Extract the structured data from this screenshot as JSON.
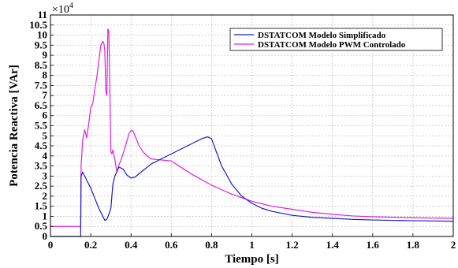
{
  "chart_data": {
    "type": "line",
    "title": "",
    "xlabel": "Tiempo [s]",
    "ylabel": "Potencia Reactiva  [VAr]",
    "y_multiplier": "×10",
    "y_exponent": "4",
    "xlim": [
      0,
      2
    ],
    "ylim": [
      0,
      11
    ],
    "x_ticks": [
      "0",
      "0.2",
      "0.4",
      "0.6",
      "0.8",
      "1",
      "1.2",
      "1.4",
      "1.6",
      "1.8",
      "2"
    ],
    "y_ticks": [
      "0",
      "0.5",
      "1",
      "1.5",
      "2",
      "2.5",
      "3",
      "3.5",
      "4",
      "4.5",
      "5",
      "5.5",
      "6",
      "6.5",
      "7",
      "7.5",
      "8",
      "8.5",
      "9",
      "9.5",
      "10",
      "10.5",
      "11"
    ],
    "grid": true,
    "legend_position": "top-right",
    "series": [
      {
        "name": "DSTATCOM Modelo Simplificado",
        "color": "#1a1acc",
        "x": [
          0,
          0.15,
          0.152,
          0.16,
          0.18,
          0.2,
          0.22,
          0.24,
          0.26,
          0.27,
          0.28,
          0.29,
          0.3,
          0.31,
          0.32,
          0.34,
          0.36,
          0.38,
          0.4,
          0.42,
          0.45,
          0.5,
          0.55,
          0.6,
          0.65,
          0.7,
          0.75,
          0.78,
          0.8,
          0.82,
          0.85,
          0.9,
          0.95,
          1.0,
          1.05,
          1.1,
          1.2,
          1.3,
          1.4,
          1.5,
          1.6,
          1.7,
          1.8,
          1.9,
          2.0
        ],
        "y": [
          0,
          0,
          3.0,
          3.2,
          2.8,
          2.4,
          1.9,
          1.4,
          1.0,
          0.8,
          0.85,
          1.1,
          1.4,
          2.6,
          3.0,
          3.45,
          3.35,
          3.05,
          2.9,
          2.95,
          3.2,
          3.6,
          3.85,
          4.1,
          4.35,
          4.6,
          4.85,
          4.95,
          4.85,
          4.3,
          3.5,
          2.6,
          2.0,
          1.65,
          1.4,
          1.25,
          1.05,
          0.95,
          0.9,
          0.85,
          0.82,
          0.8,
          0.78,
          0.77,
          0.76
        ]
      },
      {
        "name": "DSTATCOM Modelo PWM Controlado",
        "color": "#e020e0",
        "x": [
          0,
          0.15,
          0.152,
          0.16,
          0.17,
          0.18,
          0.19,
          0.2,
          0.21,
          0.22,
          0.23,
          0.24,
          0.25,
          0.26,
          0.265,
          0.27,
          0.275,
          0.28,
          0.285,
          0.29,
          0.3,
          0.305,
          0.31,
          0.32,
          0.33,
          0.34,
          0.35,
          0.37,
          0.39,
          0.4,
          0.41,
          0.42,
          0.44,
          0.46,
          0.48,
          0.5,
          0.55,
          0.6,
          0.7,
          0.8,
          0.9,
          1.0,
          1.1,
          1.2,
          1.3,
          1.4,
          1.5,
          1.6,
          1.8,
          2.0
        ],
        "y": [
          0.5,
          0.5,
          3.5,
          4.8,
          5.3,
          4.9,
          5.6,
          6.4,
          6.6,
          7.3,
          7.9,
          8.7,
          9.5,
          9.7,
          9.6,
          9.2,
          7.2,
          7.0,
          10.3,
          10.2,
          4.2,
          4.1,
          4.3,
          3.8,
          3.2,
          3.55,
          3.8,
          4.4,
          5.1,
          5.25,
          5.25,
          5.0,
          4.5,
          4.2,
          4.0,
          3.85,
          3.8,
          3.75,
          3.1,
          2.55,
          2.1,
          1.75,
          1.5,
          1.35,
          1.2,
          1.1,
          1.02,
          0.98,
          0.93,
          0.9
        ]
      }
    ]
  }
}
